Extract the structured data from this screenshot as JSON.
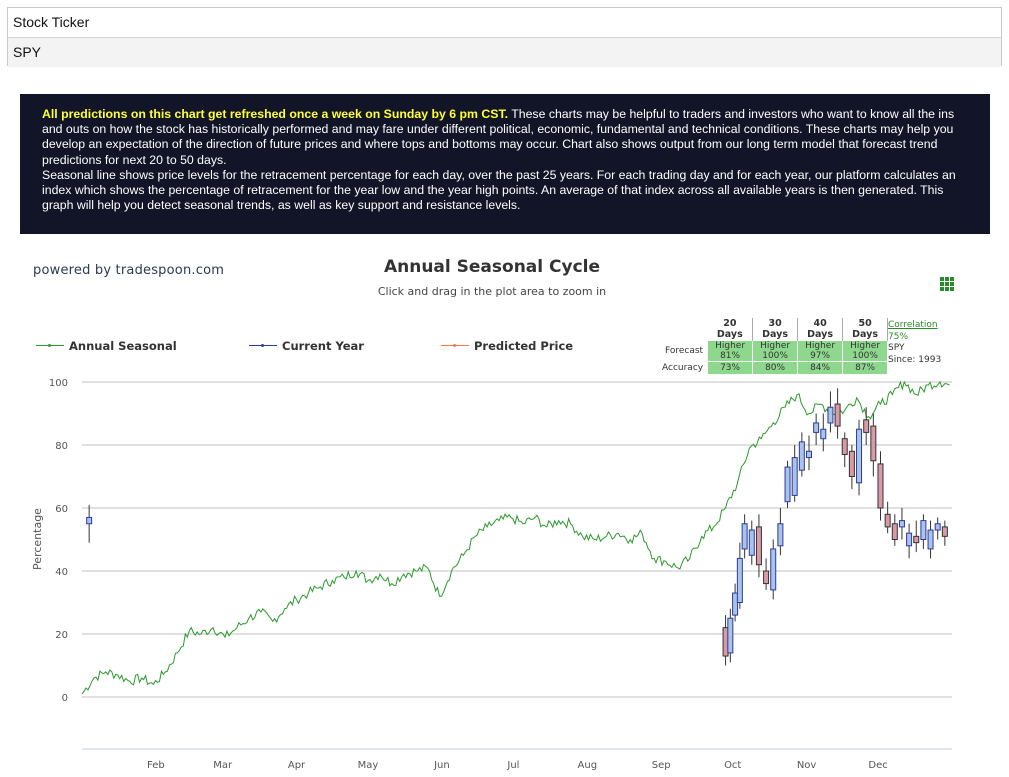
{
  "ticker": {
    "label": "Stock Ticker",
    "value": "SPY"
  },
  "info": {
    "highlight": "All predictions on this chart get refreshed once a week on Sunday by 6 pm CST.",
    "paragraph1": " These charts may be helpful to traders and investors who want to know all the ins and outs on how the stock has historically performed and may fare under different political, economic, fundamental and technical conditions. These charts may help you develop an expectation of the direction of future prices and where tops and bottoms may occur. Chart also shows output from our long term model that forecast trend predictions for next 20 to 50 days.",
    "paragraph2": "Seasonal line shows price levels for the retracement percentage for each day, over the past 25 years. For each trading day and for each year, our platform calculates an index which shows the percentage of retracement for the year low and the year high points. An average of that index across all available years is then generated. This graph will help you detect seasonal trends, as well as key support and resistance levels."
  },
  "powered_by": "powered by tradespoon.com",
  "forecast_table": {
    "headers": [
      "20 Days",
      "30 Days",
      "40 Days",
      "50 Days"
    ],
    "forecast_label": "Forecast",
    "accuracy_label": "Accuracy",
    "forecast": [
      {
        "direction": "Higher",
        "pct": "81%"
      },
      {
        "direction": "Higher",
        "pct": "100%"
      },
      {
        "direction": "Higher",
        "pct": "97%"
      },
      {
        "direction": "Higher",
        "pct": "100%"
      }
    ],
    "accuracy": [
      "73%",
      "80%",
      "84%",
      "87%"
    ],
    "correlation_label": "Correlation",
    "correlation_value": "75%",
    "symbol": "SPY",
    "since": "Since: 1993"
  },
  "colors": {
    "seasonal": "#2a9a2a",
    "current": "#2b3aa0",
    "predicted": "#ff7744",
    "candle_up": "#a9c4e8",
    "candle_down": "#d99aa6",
    "grid": "#c0c0c0"
  },
  "chart_data": {
    "type": "line",
    "title": "Annual Seasonal Cycle",
    "subtitle": "Click and drag in the plot area to zoom in",
    "ylabel": "Percentage",
    "ylim": [
      0,
      100
    ],
    "yticks": [
      0,
      20,
      40,
      60,
      80,
      100
    ],
    "x_tick_labels": [
      "Feb",
      "Mar",
      "Apr",
      "May",
      "Jun",
      "Jul",
      "Aug",
      "Sep",
      "Oct",
      "Nov",
      "Dec"
    ],
    "legend": [
      "Annual Seasonal",
      "Current Year",
      "Predicted Price"
    ],
    "series": [
      {
        "name": "Annual Seasonal",
        "x_day": [
          0,
          5,
          10,
          15,
          20,
          25,
          30,
          35,
          40,
          45,
          50,
          55,
          60,
          65,
          70,
          75,
          80,
          85,
          90,
          95,
          100,
          105,
          110,
          115,
          120,
          125,
          130,
          135,
          140,
          145,
          150,
          155,
          160,
          165,
          170,
          175,
          180,
          185,
          190,
          195,
          200,
          205,
          210,
          215,
          220,
          225,
          230,
          235,
          240,
          245,
          250,
          255,
          260,
          265,
          270,
          275,
          280,
          285,
          290,
          295,
          300,
          305,
          310,
          315,
          320,
          325,
          330,
          335,
          340,
          345,
          350,
          355,
          360,
          364
        ],
        "y": [
          1,
          6,
          8,
          7,
          5,
          6,
          4,
          8,
          14,
          21,
          20,
          22,
          19,
          22,
          25,
          27,
          24,
          28,
          31,
          33,
          35,
          37,
          38,
          40,
          37,
          39,
          36,
          39,
          40,
          41,
          32,
          40,
          45,
          51,
          54,
          56,
          57,
          55,
          57,
          54,
          56,
          55,
          51,
          50,
          51,
          52,
          50,
          52,
          44,
          43,
          41,
          44,
          51,
          54,
          60,
          68,
          79,
          82,
          87,
          92,
          96,
          90,
          93,
          90,
          91,
          95,
          89,
          93,
          96,
          100,
          96,
          99,
          100,
          99
        ]
      },
      {
        "name": "Current Year",
        "type": "candlestick",
        "x_day": [
          3,
          270,
          272,
          274,
          276,
          278,
          281,
          284,
          287,
          290,
          293,
          296,
          299,
          302,
          305,
          308,
          311,
          314,
          317,
          320,
          323,
          326,
          329,
          332,
          335,
          338,
          341,
          344,
          347,
          350,
          353,
          356,
          359,
          362
        ],
        "open": [
          55,
          22,
          14,
          26,
          30,
          47,
          45,
          54,
          40,
          34,
          48,
          62,
          64,
          72,
          76,
          84,
          82,
          87,
          93,
          82,
          78,
          68,
          88,
          86,
          74,
          58,
          55,
          54,
          48,
          51,
          50,
          47,
          53,
          54
        ],
        "close": [
          57,
          13,
          25,
          33,
          44,
          55,
          53,
          42,
          36,
          47,
          55,
          73,
          76,
          81,
          78,
          87,
          85,
          92,
          86,
          77,
          70,
          85,
          84,
          75,
          60,
          54,
          50,
          56,
          52,
          49,
          56,
          53,
          55,
          51
        ],
        "high": [
          61,
          26,
          28,
          36,
          49,
          58,
          56,
          58,
          44,
          50,
          60,
          75,
          80,
          84,
          83,
          90,
          90,
          97,
          98,
          84,
          80,
          88,
          92,
          90,
          78,
          62,
          58,
          60,
          55,
          56,
          58,
          56,
          57,
          56
        ],
        "low": [
          49,
          10,
          11,
          24,
          28,
          44,
          42,
          38,
          34,
          31,
          45,
          60,
          62,
          70,
          72,
          80,
          78,
          84,
          82,
          73,
          66,
          64,
          80,
          70,
          56,
          52,
          48,
          50,
          44,
          46,
          47,
          44,
          50,
          48
        ]
      },
      {
        "name": "Predicted Price",
        "x_day": [],
        "y": []
      }
    ]
  }
}
